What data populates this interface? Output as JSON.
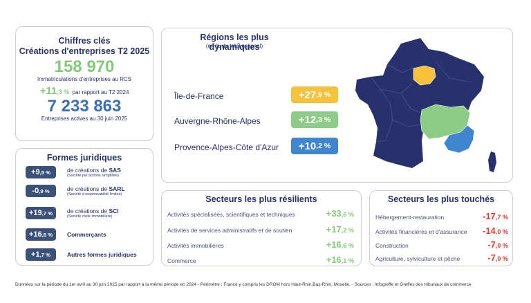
{
  "key_figures": {
    "title_line1": "Chiffres clés",
    "title_line2": "Créations d'entreprises T2 2025",
    "registrations_value": "158 970",
    "registrations_label": "Immatriculations d'entreprises au RCS",
    "growth_sign": "+",
    "growth_int": "11",
    "growth_dec": ",3 %",
    "growth_label": "par rapport au T2 2024",
    "active_value": "7 233 863",
    "active_label": "Entreprises actives au 30 juin 2025"
  },
  "legal_forms": {
    "title": "Formes juridiques",
    "items": [
      {
        "int": "+9",
        "dec": ",5 %",
        "prefix": "de créations de ",
        "name": "SAS",
        "sub": "(Société par actions simplifiée)"
      },
      {
        "int": "-0",
        "dec": ",9 %",
        "prefix": "de créations de ",
        "name": "SARL",
        "sub": "(Société à responsabilité limitée)"
      },
      {
        "int": "+19",
        "dec": ",7 %",
        "prefix": "de créations de ",
        "name": "SCI",
        "sub": "(Société civile immobilière)"
      },
      {
        "int": "+16",
        "dec": ",6 %",
        "prefix": "",
        "name": "Commerçants",
        "sub": ""
      },
      {
        "int": "+1",
        "dec": ",7 %",
        "prefix": "",
        "name": "Autres formes juridiques",
        "sub": ""
      }
    ]
  },
  "regions": {
    "title": "Régions les plus dynamiques",
    "subtitle": "(en % du total national)",
    "items": [
      {
        "name": "Île-de-France",
        "int": "+27",
        "dec": ",9 %",
        "color": "#f7c23b"
      },
      {
        "name": "Auvergne-Rhône-Alpes",
        "int": "+12",
        "dec": ",3 %",
        "color": "#8ccc86"
      },
      {
        "name": "Provence-Alpes-Côte d'Azur",
        "int": "+10",
        "dec": ",2 %",
        "color": "#3f86cf"
      }
    ],
    "map_colors": {
      "base": "#27316b",
      "idf": "#f7c23b",
      "ara": "#8ccc86",
      "paca": "#3f86cf"
    }
  },
  "resilient": {
    "title": "Secteurs les plus résilients",
    "items": [
      {
        "label": "Activités spécialisées, scientifiques et techniques",
        "int": "+33",
        "dec": ",6 %"
      },
      {
        "label": "Activités de services administratifs et de soutien",
        "int": "+17",
        "dec": ",2 %"
      },
      {
        "label": "Activités immobilières",
        "int": "+16",
        "dec": ",6 %"
      },
      {
        "label": "Commerce",
        "int": "+16",
        "dec": ",1 %"
      }
    ]
  },
  "hit": {
    "title": "Secteurs les plus touchés",
    "items": [
      {
        "label": "Hébergement-restauration",
        "int": "-17",
        "dec": ",7 %"
      },
      {
        "label": "Activités financières et d'assurance",
        "int": "-14",
        "dec": ",0 %"
      },
      {
        "label": "Construction",
        "int": "-7",
        "dec": ",0 %"
      },
      {
        "label": "Agriculture, sylviculture et pêche",
        "int": "-7",
        "dec": ",0 %"
      }
    ]
  },
  "footer": "Données sur la période du 1er avril au 30 juin 2025 par rapport à la même période en 2024  -  Périmètre : France y compris les DROM hors Haut-Rhin,Bas-Rhin, Moselle,  - Sources : Infogreffe et Greffes des tribunaux de commerce"
}
